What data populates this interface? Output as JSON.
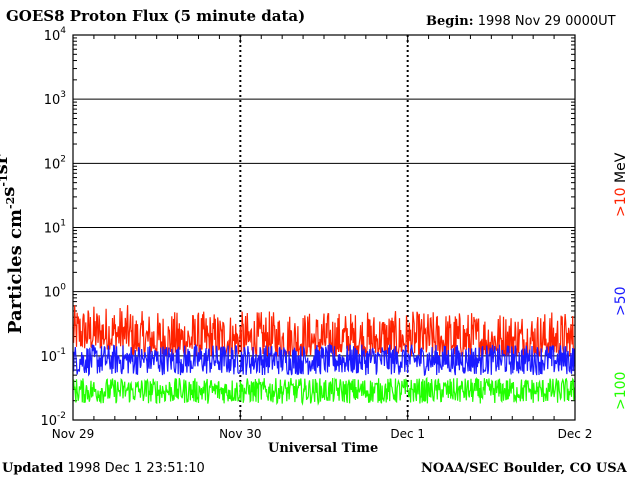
{
  "chart_data": {
    "type": "line",
    "title": "GOES8 Proton Flux (5 minute data)",
    "begin_label": "Begin:",
    "begin_value": "1998 Nov 29 0000UT",
    "xlabel": "Universal Time",
    "ylabel": "Particles cm",
    "ylabel_parts": [
      {
        "text": "Particles cm",
        "sup": "-2"
      },
      {
        "text": "s",
        "sup": "-1"
      },
      {
        "text": "sr",
        "sup": "-1"
      }
    ],
    "yscale": "log",
    "ylim": [
      0.01,
      10000
    ],
    "y_ticks": [
      {
        "base": "10",
        "exp": "-2"
      },
      {
        "base": "10",
        "exp": "-1"
      },
      {
        "base": "10",
        "exp": "0"
      },
      {
        "base": "10",
        "exp": "1"
      },
      {
        "base": "10",
        "exp": "2"
      },
      {
        "base": "10",
        "exp": "3"
      },
      {
        "base": "10",
        "exp": "4"
      }
    ],
    "x_ticks": [
      "Nov 29",
      "Nov 30",
      "Dec 1",
      "Dec 2"
    ],
    "xlim_days": [
      0,
      3
    ],
    "grid": true,
    "series": [
      {
        "name": ">10 MeV",
        "color": "#ff2200",
        "typical_range": [
          0.1,
          0.5
        ]
      },
      {
        "name": ">50",
        "color": "#1a1aff",
        "typical_range": [
          0.05,
          0.15
        ]
      },
      {
        "name": ">100",
        "color": "#22ff00",
        "typical_range": [
          0.018,
          0.05
        ]
      }
    ]
  },
  "footer": {
    "updated_label": "Updated",
    "updated_value": "1998 Dec  1 23:51:10",
    "source": "NOAA/SEC Boulder, CO USA"
  }
}
